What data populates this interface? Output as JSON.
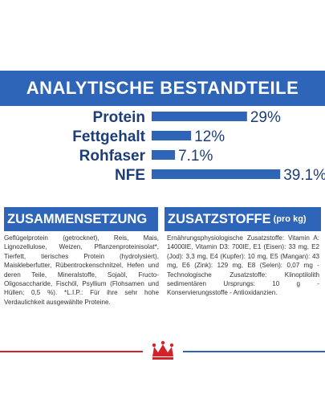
{
  "chart_data": {
    "type": "bar",
    "title": "ANALYTISCHE BESTANDTEILE",
    "categories": [
      "Protein",
      "Fettgehalt",
      "Rohfaser",
      "NFE"
    ],
    "values": [
      29,
      12,
      7.1,
      39.1
    ],
    "value_labels": [
      "29%",
      "12%",
      "7.1%",
      "39.1%"
    ],
    "orientation": "horizontal",
    "xlim": [
      0,
      41
    ],
    "grid": false,
    "legend": "none"
  },
  "composition": {
    "heading": "ZUSAMMENSETZUNG",
    "text": "Geflügelprotein (getrocknet), Reis, Mais, Lignozellulose, Weizen, Pflanzenproteinisolat*, Tierfett, tierisches Protein (hydrolysiert), Maiskleberfutter, Rübentrockenschnitzel, Hefen und deren Teile, Mineralstoffe, Sojaöl, Fructo-Oligosaccharide, Fischöl, Psyllium (Flohsamen und Hüllen; 0,5 %). *L.I.P.: Für ihre sehr hohe Verdaulichkeit ausgewählte Proteine."
  },
  "additives": {
    "heading": "ZUSATZSTOFFE",
    "heading_suffix": "(pro kg)",
    "text": "Ernährungsphysiologische Zusatzstoffe: Vitamin A: 14000IE, Vitamin D3: 700IE, E1 (Eisen): 33 mg, E2 (Jod): 3,3 mg, E4 (Kupfer): 10 mg, E5 (Mangan): 43 mg, E6 (Zink): 129 mg, E8 (Selen): 0,07 mg - Technologische Zusatzstoffe: Klinoptilolith sedimentären Ursprungs: 10 g - Konservierungsstoffe - Antioxidanzien."
  },
  "colors": {
    "banner": "#2e65b8",
    "bar": "#2e65b8",
    "text_dark": "#1d3d78",
    "footer_red": "#d2232a",
    "footer_blue": "#2e65b8"
  },
  "logo": {
    "icon": "royal-canin-crown-logo"
  }
}
